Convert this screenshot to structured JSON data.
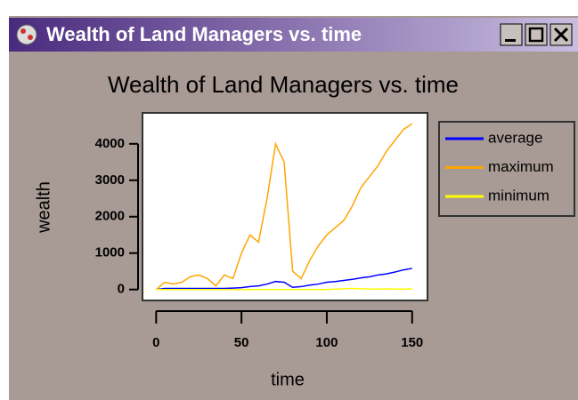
{
  "window": {
    "title": "Wealth of Land Managers vs. time"
  },
  "chart_data": {
    "type": "line",
    "title": "Wealth of Land Managers vs. time",
    "x_label": "time",
    "y_label": "wealth",
    "x": [
      0,
      5,
      10,
      15,
      20,
      25,
      30,
      35,
      40,
      45,
      50,
      55,
      60,
      65,
      70,
      75,
      80,
      85,
      90,
      95,
      100,
      105,
      110,
      115,
      120,
      125,
      130,
      135,
      140,
      145,
      150
    ],
    "series": [
      {
        "name": "average",
        "color": "#0000ff",
        "values": [
          0,
          30,
          30,
          30,
          30,
          30,
          30,
          30,
          30,
          40,
          50,
          80,
          100,
          150,
          220,
          200,
          60,
          80,
          120,
          150,
          200,
          220,
          250,
          280,
          320,
          350,
          400,
          430,
          480,
          540,
          580
        ]
      },
      {
        "name": "maximum",
        "color": "#ffa500",
        "values": [
          0,
          200,
          150,
          200,
          350,
          400,
          300,
          100,
          400,
          300,
          1000,
          1500,
          1300,
          2500,
          4000,
          3500,
          500,
          300,
          800,
          1200,
          1500,
          1700,
          1900,
          2300,
          2800,
          3100,
          3400,
          3800,
          4100,
          4400,
          4550
        ]
      },
      {
        "name": "minimum",
        "color": "#ffff00",
        "values": [
          0,
          0,
          0,
          0,
          0,
          0,
          0,
          0,
          0,
          0,
          0,
          0,
          0,
          0,
          0,
          0,
          0,
          0,
          0,
          0,
          0,
          10,
          20,
          30,
          20,
          10,
          10,
          20,
          10,
          10,
          20
        ]
      }
    ],
    "xlim": [
      -8,
      159
    ],
    "xticks": [
      0,
      50,
      100,
      150
    ],
    "ylim": [
      -300,
      4850
    ],
    "yticks": [
      0,
      1000,
      2000,
      3000,
      4000
    ],
    "legend": "right"
  }
}
